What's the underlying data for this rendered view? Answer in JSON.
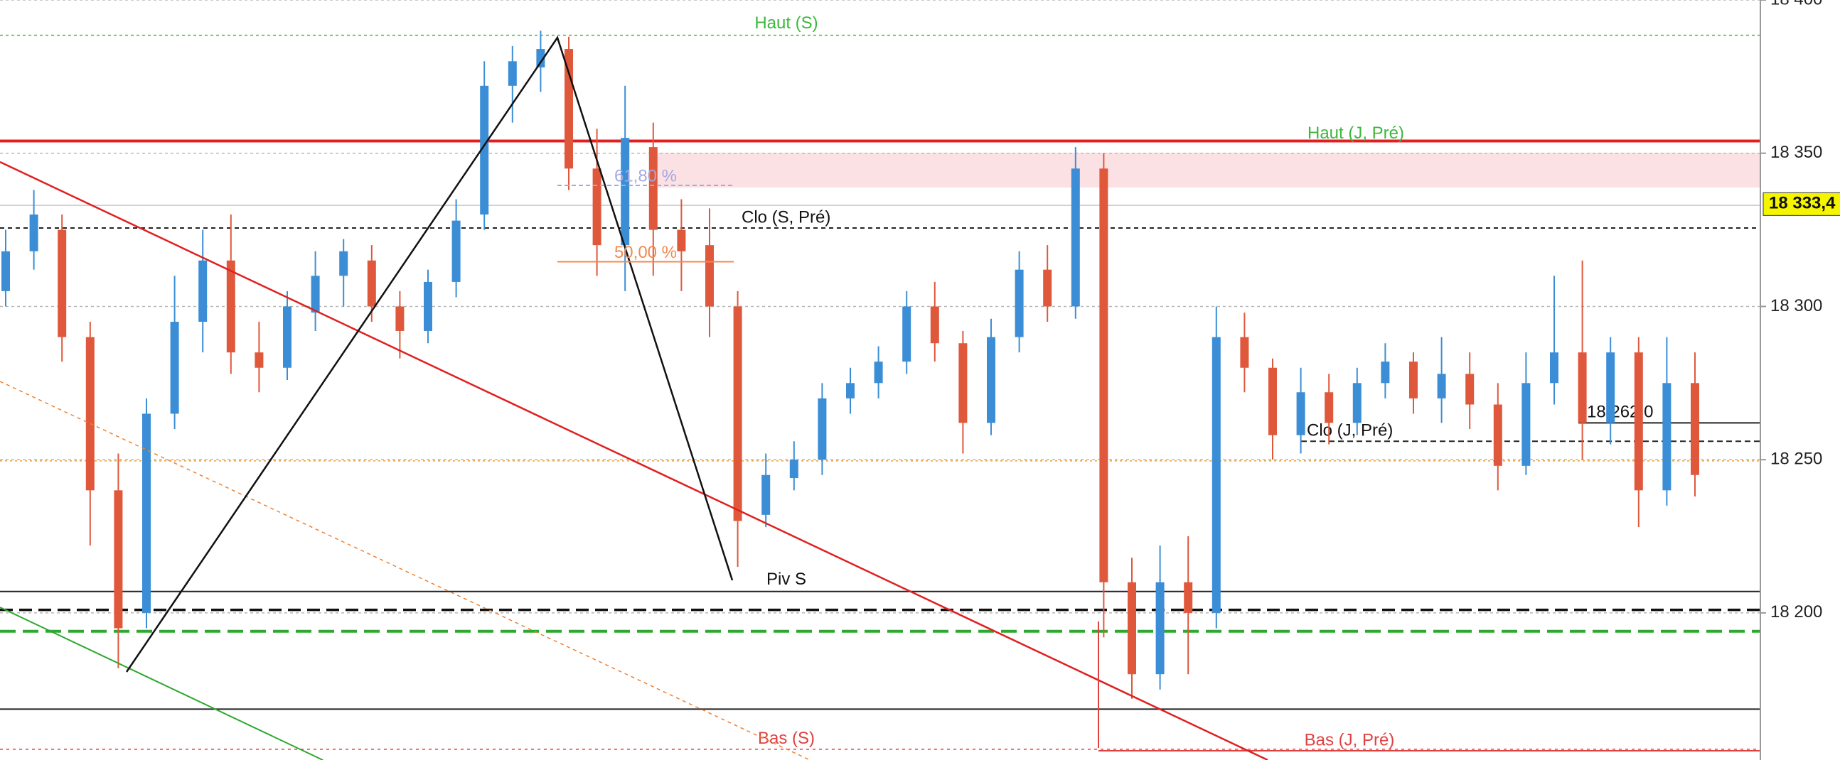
{
  "chart_data": {
    "type": "candlestick",
    "up_color": "#3b8ed6",
    "down_color": "#e0583c",
    "ylim": [
      18152,
      18400
    ],
    "yticks": [
      {
        "value": 18200,
        "label": "18 200"
      },
      {
        "value": 18250,
        "label": "18 250"
      },
      {
        "value": 18300,
        "label": "18 300"
      },
      {
        "value": 18350,
        "label": "18 350"
      },
      {
        "value": 18400,
        "label": "18 400"
      }
    ],
    "grid": true,
    "open": [
      18305,
      18318,
      18325,
      18290,
      18240,
      18200,
      18265,
      18295,
      18315,
      18285,
      18280,
      18298,
      18310,
      18315,
      18300,
      18292,
      18308,
      18330,
      18372,
      18378,
      18384,
      18345,
      18320,
      18352,
      18325,
      18320,
      18300,
      18232,
      18244,
      18250,
      18270,
      18275,
      18282,
      18300,
      18288,
      18262,
      18290,
      18312,
      18300,
      18345,
      18210,
      18180,
      18210,
      18200,
      18290,
      18280,
      18258,
      18272,
      18262,
      18275,
      18282,
      18270,
      18278,
      18268,
      18248,
      18275,
      18285,
      18262,
      18285,
      18240,
      18275
    ],
    "high": [
      18325,
      18338,
      18330,
      18295,
      18252,
      18270,
      18310,
      18325,
      18330,
      18295,
      18305,
      18318,
      18322,
      18320,
      18305,
      18312,
      18335,
      18380,
      18385,
      18390,
      18388,
      18358,
      18372,
      18360,
      18335,
      18332,
      18305,
      18252,
      18256,
      18275,
      18280,
      18287,
      18305,
      18308,
      18292,
      18296,
      18318,
      18320,
      18352,
      18350,
      18218,
      18222,
      18225,
      18300,
      18298,
      18283,
      18280,
      18278,
      18280,
      18288,
      18285,
      18290,
      18285,
      18275,
      18285,
      18310,
      18315,
      18290,
      18290,
      18290,
      18285
    ],
    "low": [
      18300,
      18312,
      18282,
      18222,
      18182,
      18195,
      18260,
      18285,
      18278,
      18272,
      18276,
      18292,
      18300,
      18295,
      18283,
      18288,
      18303,
      18325,
      18360,
      18370,
      18338,
      18310,
      18305,
      18310,
      18305,
      18290,
      18215,
      18228,
      18240,
      18245,
      18265,
      18270,
      18278,
      18282,
      18252,
      18258,
      18285,
      18295,
      18296,
      18192,
      18172,
      18175,
      18180,
      18195,
      18272,
      18250,
      18252,
      18255,
      18258,
      18270,
      18265,
      18262,
      18260,
      18240,
      18245,
      18268,
      18250,
      18255,
      18228,
      18235,
      18238
    ],
    "close": [
      18318,
      18330,
      18290,
      18240,
      18195,
      18265,
      18295,
      18315,
      18285,
      18280,
      18300,
      18310,
      18318,
      18300,
      18292,
      18308,
      18328,
      18372,
      18380,
      18384,
      18345,
      18320,
      18355,
      18325,
      18318,
      18300,
      18230,
      18245,
      18250,
      18270,
      18275,
      18282,
      18300,
      18288,
      18262,
      18290,
      18312,
      18300,
      18345,
      18210,
      18180,
      18210,
      18200,
      18290,
      18280,
      18258,
      18272,
      18262,
      18275,
      18282,
      18270,
      18278,
      18268,
      18248,
      18275,
      18285,
      18262,
      18285,
      18240,
      18275,
      18245
    ],
    "levels": [
      {
        "label": "Haut (S)",
        "value": 18388.5,
        "color": "#3db83d",
        "label_color": "#3db83d",
        "dash": "4,4",
        "width": 1.5
      },
      {
        "label": "Haut (J, Pré)",
        "value": 18354,
        "color": "#e02020",
        "label_color": "#3db83d",
        "dash": "none",
        "width": 4
      },
      {
        "label": "Clo (S, Pré)",
        "value": 18325.6,
        "color": "#222222",
        "label_color": "#111111",
        "dash": "6,5",
        "width": 2
      },
      {
        "label": "Clo (J, Pré)",
        "value": 18256,
        "color": "#222222",
        "label_color": "#111111",
        "dash": "8,5",
        "width": 2
      },
      {
        "label": "18 262,0",
        "value": 18262,
        "color": "#222222",
        "label_color": "#111111",
        "dash": "none",
        "width": 2
      },
      {
        "label": "Piv S",
        "value": 18207,
        "color": "#222222",
        "label_color": "#111111",
        "dash": "none",
        "width": 2
      },
      {
        "label": "Bas (S)",
        "value": 18155.5,
        "color": "#e04040",
        "label_color": "#e04040",
        "dash": "4,5",
        "width": 1.5
      },
      {
        "label": "Bas (J, Pré)",
        "value": 18155,
        "color": "#e04040",
        "label_color": "#e04040",
        "dash": "none",
        "width": 2
      },
      {
        "value": 18201,
        "color": "#111111",
        "dash": "18,9",
        "width": 3.5
      },
      {
        "value": 18194,
        "color": "#2ea82e",
        "dash": "22,10",
        "width": 4
      },
      {
        "value": 18168.6,
        "color": "#222222",
        "dash": "none",
        "width": 2
      },
      {
        "value": 18249.6,
        "color": "#f0a030",
        "dash": "3,4",
        "width": 1.5
      },
      {
        "value": 18333,
        "color": "#c8c8c8",
        "dash": "none",
        "width": 1.5
      }
    ],
    "fib": [
      {
        "label": "61,80 %",
        "value": 18339.5,
        "color": "#a6a8e0"
      },
      {
        "label": "50,00 %",
        "value": 18314.6,
        "color": "#f08a50"
      }
    ],
    "price_tag": {
      "value": 18333.4,
      "label": "18 333,4"
    }
  }
}
